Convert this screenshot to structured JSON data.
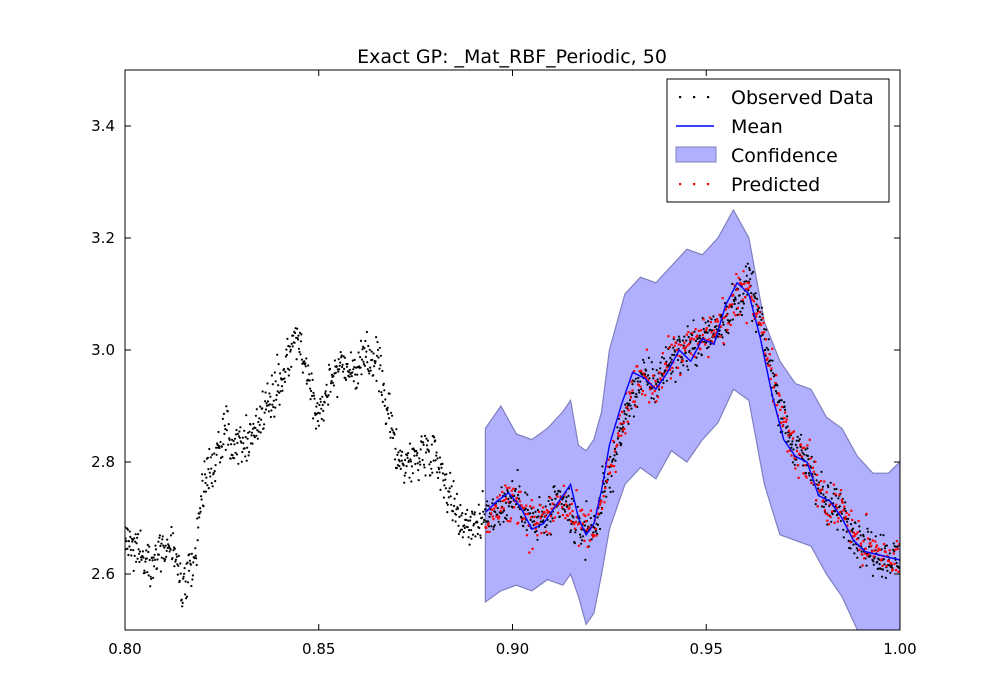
{
  "chart_data": {
    "type": "line",
    "title": "Exact GP: _Mat_RBF_Periodic, 50",
    "xlabel": "",
    "ylabel": "",
    "xlim": [
      0.8,
      1.0
    ],
    "ylim": [
      2.5,
      3.5
    ],
    "x_ticks": [
      0.8,
      0.85,
      0.9,
      0.95,
      1.0
    ],
    "x_tick_labels": [
      "0.80",
      "0.85",
      "0.90",
      "0.95",
      "1.00"
    ],
    "y_ticks": [
      2.6,
      2.8,
      3.0,
      3.2,
      3.4
    ],
    "y_tick_labels": [
      "2.6",
      "2.8",
      "3.0",
      "3.2",
      "3.4"
    ],
    "grid": false,
    "legend_position": "top-right",
    "legend": [
      {
        "label": "Observed Data",
        "kind": "dots",
        "color": "#000000"
      },
      {
        "label": "Mean",
        "kind": "line",
        "color": "#0000ff"
      },
      {
        "label": "Confidence",
        "kind": "band",
        "color": "#b0b0ff"
      },
      {
        "label": "Predicted",
        "kind": "dots",
        "color": "#ff0000"
      }
    ],
    "observed_trend": {
      "x": [
        0.8,
        0.803,
        0.806,
        0.809,
        0.812,
        0.815,
        0.818,
        0.82,
        0.823,
        0.826,
        0.829,
        0.832,
        0.835,
        0.838,
        0.841,
        0.844,
        0.847,
        0.85,
        0.853,
        0.856,
        0.859,
        0.862,
        0.865,
        0.868,
        0.871,
        0.874,
        0.877,
        0.88,
        0.883,
        0.886,
        0.889,
        0.893,
        0.897,
        0.901,
        0.905,
        0.909,
        0.913,
        0.917,
        0.921,
        0.925,
        0.929,
        0.933,
        0.937,
        0.941,
        0.945,
        0.949,
        0.953,
        0.957,
        0.961,
        0.965,
        0.969,
        0.973,
        0.977,
        0.981,
        0.985,
        0.989,
        0.993,
        0.997,
        1.0
      ],
      "y": [
        2.66,
        2.65,
        2.62,
        2.64,
        2.65,
        2.57,
        2.62,
        2.76,
        2.8,
        2.85,
        2.84,
        2.84,
        2.88,
        2.92,
        2.96,
        3.03,
        2.96,
        2.88,
        2.95,
        2.98,
        2.96,
        2.98,
        2.99,
        2.88,
        2.8,
        2.8,
        2.82,
        2.82,
        2.76,
        2.7,
        2.69,
        2.7,
        2.72,
        2.74,
        2.69,
        2.7,
        2.73,
        2.68,
        2.68,
        2.78,
        2.88,
        2.95,
        2.94,
        2.99,
        3.0,
        3.02,
        3.04,
        3.08,
        3.12,
        3.02,
        2.9,
        2.82,
        2.79,
        2.72,
        2.72,
        2.66,
        2.64,
        2.63,
        2.62
      ]
    },
    "mean": {
      "x": [
        0.893,
        0.896,
        0.899,
        0.902,
        0.905,
        0.908,
        0.911,
        0.913,
        0.915,
        0.917,
        0.919,
        0.921,
        0.923,
        0.925,
        0.928,
        0.931,
        0.934,
        0.937,
        0.94,
        0.943,
        0.946,
        0.949,
        0.952,
        0.955,
        0.958,
        0.961,
        0.964,
        0.967,
        0.97,
        0.973,
        0.976,
        0.979,
        0.982,
        0.985,
        0.988,
        0.991,
        0.994,
        0.997,
        1.0
      ],
      "y": [
        2.71,
        2.73,
        2.745,
        2.72,
        2.68,
        2.69,
        2.72,
        2.74,
        2.76,
        2.7,
        2.67,
        2.69,
        2.75,
        2.83,
        2.9,
        2.96,
        2.95,
        2.93,
        2.96,
        3.0,
        2.98,
        3.02,
        3.01,
        3.08,
        3.12,
        3.1,
        3.02,
        2.92,
        2.84,
        2.81,
        2.8,
        2.74,
        2.73,
        2.7,
        2.66,
        2.64,
        2.635,
        2.63,
        2.625
      ]
    },
    "confidence": {
      "x": [
        0.893,
        0.897,
        0.901,
        0.905,
        0.909,
        0.913,
        0.915,
        0.917,
        0.919,
        0.921,
        0.923,
        0.925,
        0.929,
        0.933,
        0.937,
        0.941,
        0.945,
        0.949,
        0.953,
        0.957,
        0.961,
        0.965,
        0.969,
        0.973,
        0.977,
        0.981,
        0.985,
        0.989,
        0.993,
        0.997,
        1.0
      ],
      "upper": [
        2.86,
        2.9,
        2.85,
        2.84,
        2.86,
        2.89,
        2.91,
        2.83,
        2.82,
        2.84,
        2.89,
        3.0,
        3.1,
        3.13,
        3.12,
        3.15,
        3.18,
        3.17,
        3.2,
        3.25,
        3.2,
        3.05,
        2.98,
        2.94,
        2.93,
        2.88,
        2.86,
        2.81,
        2.78,
        2.78,
        2.8
      ],
      "lower": [
        2.55,
        2.57,
        2.58,
        2.57,
        2.59,
        2.58,
        2.6,
        2.56,
        2.51,
        2.53,
        2.6,
        2.68,
        2.76,
        2.79,
        2.77,
        2.82,
        2.8,
        2.84,
        2.87,
        2.93,
        2.91,
        2.76,
        2.67,
        2.66,
        2.65,
        2.6,
        2.56,
        2.5,
        2.48,
        2.47,
        2.46
      ]
    }
  }
}
